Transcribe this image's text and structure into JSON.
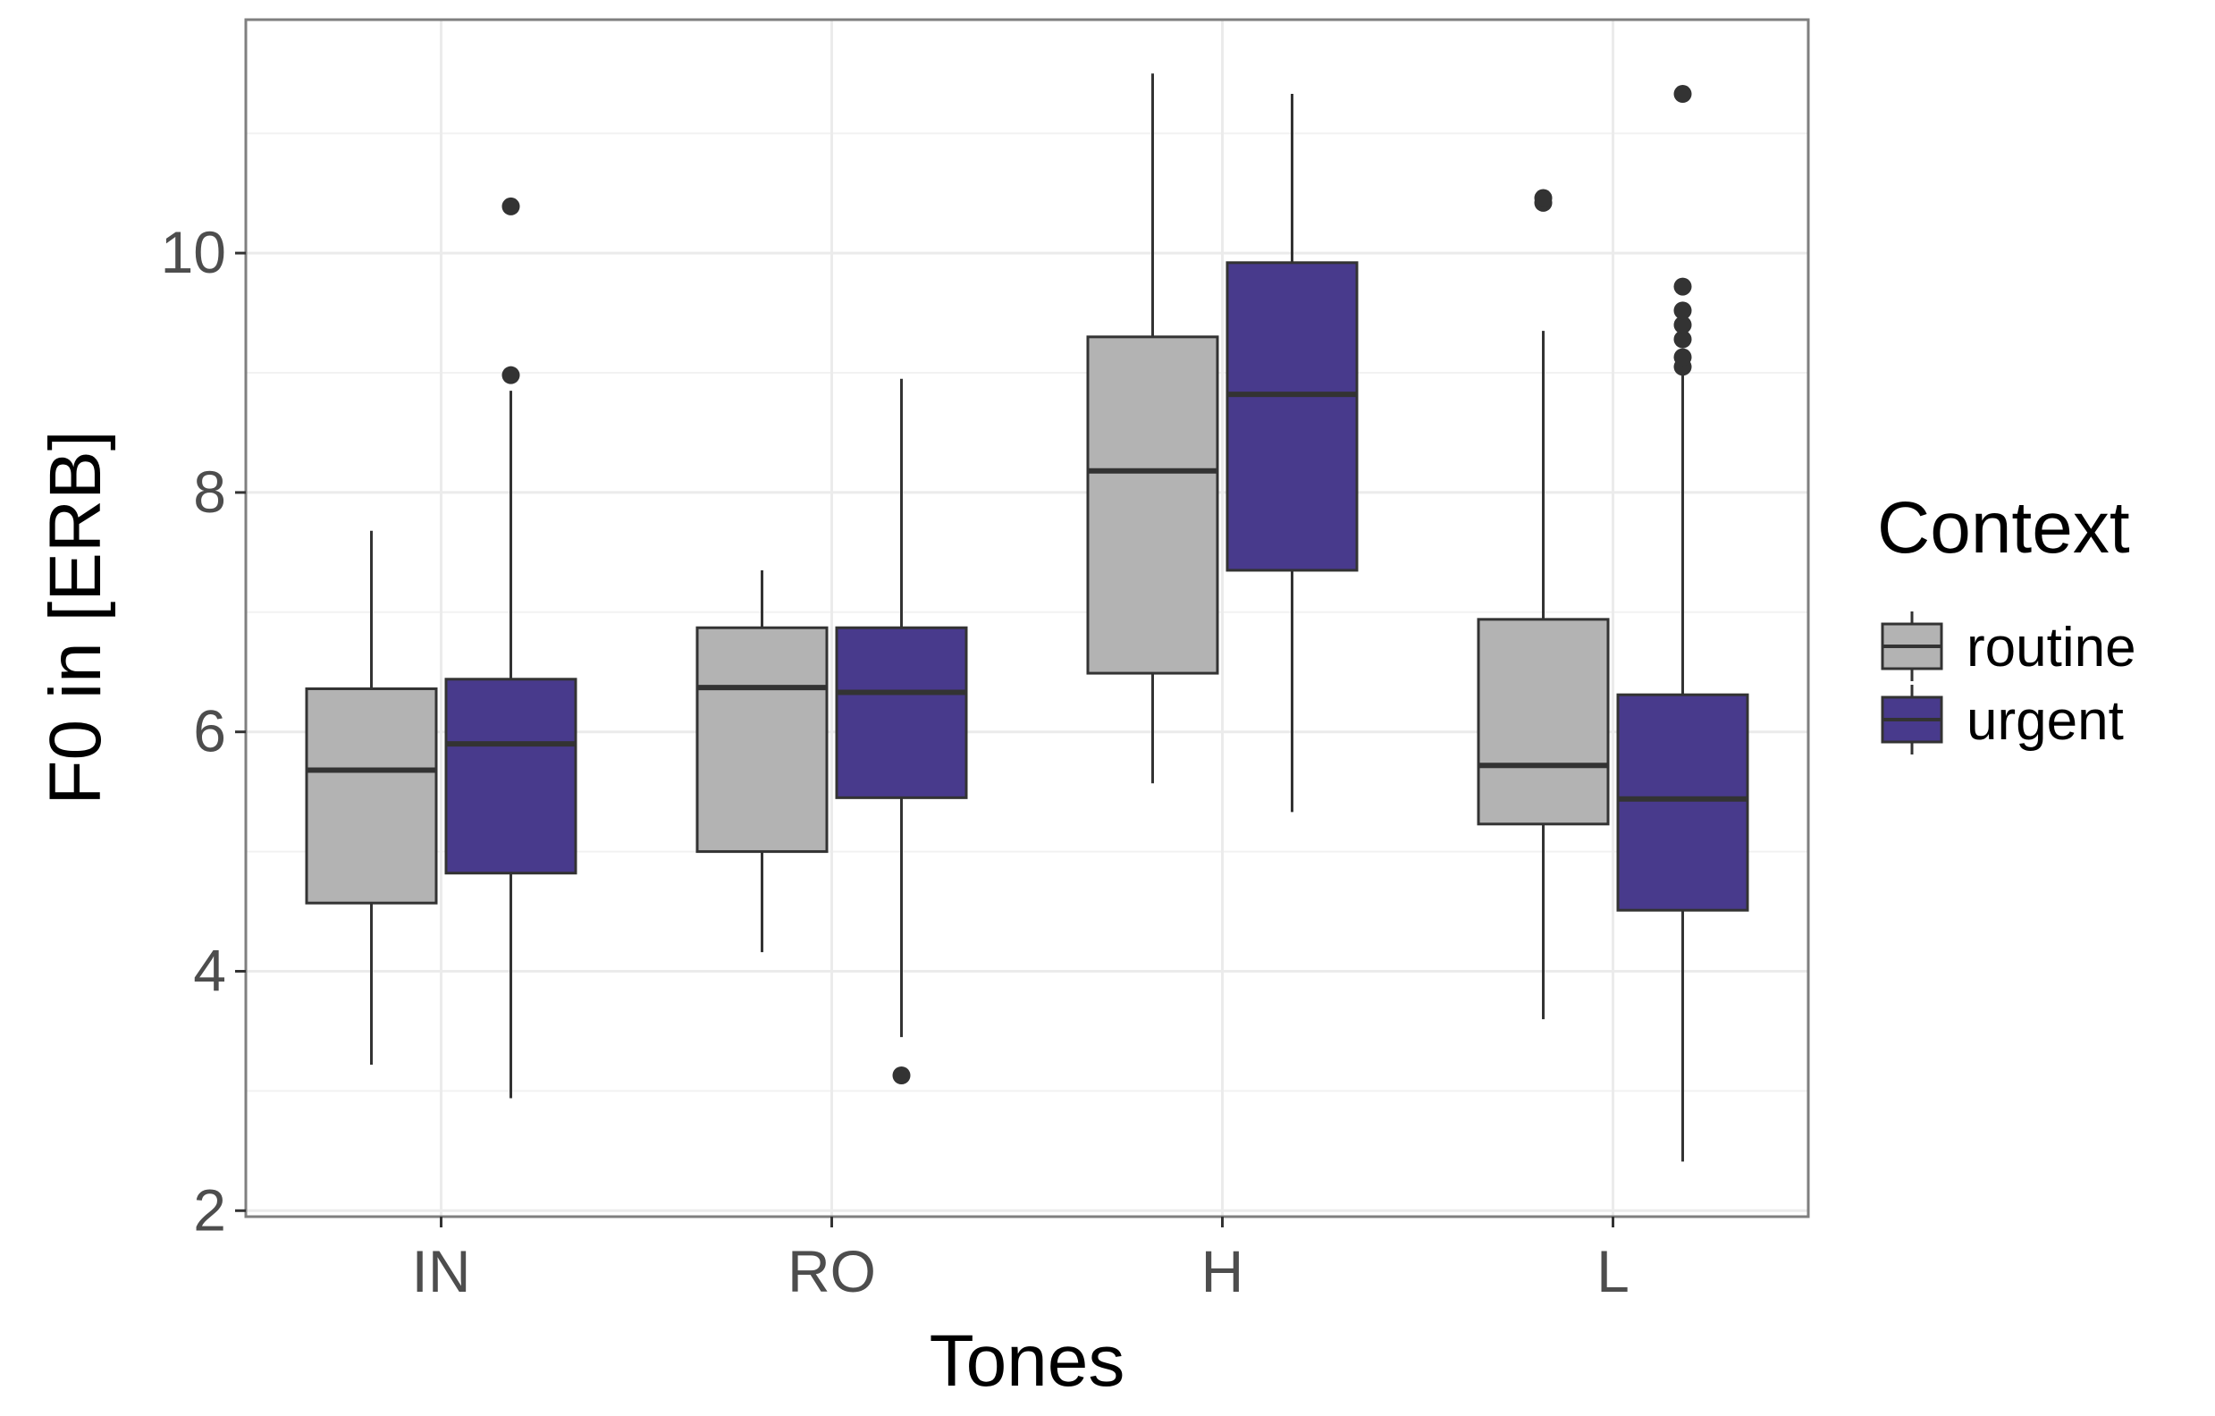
{
  "chart_data": {
    "type": "boxplot",
    "title": "",
    "xlabel": "Tones",
    "ylabel": "F0 in [ERB]",
    "ylim": [
      1.95,
      11.95
    ],
    "yticks": [
      2,
      4,
      6,
      8,
      10
    ],
    "ytick_labels": [
      "2",
      "4",
      "6",
      "8",
      "10"
    ],
    "grid": true,
    "legend_position": "right",
    "categories": [
      "IN",
      "RO",
      "H",
      "L"
    ],
    "legend": {
      "title": "Context",
      "entries": [
        "routine",
        "urgent"
      ]
    },
    "series": [
      {
        "name": "routine",
        "color": "#b3b3b3",
        "boxes": [
          {
            "category": "IN",
            "whisker_low": 3.22,
            "q1": 4.57,
            "median": 5.68,
            "q3": 6.36,
            "whisker_high": 7.68,
            "outliers": []
          },
          {
            "category": "RO",
            "whisker_low": 4.16,
            "q1": 5.0,
            "median": 6.37,
            "q3": 6.87,
            "whisker_high": 7.35,
            "outliers": []
          },
          {
            "category": "H",
            "whisker_low": 5.57,
            "q1": 6.49,
            "median": 8.18,
            "q3": 9.3,
            "whisker_high": 11.5,
            "outliers": []
          },
          {
            "category": "L",
            "whisker_low": 3.6,
            "q1": 5.23,
            "median": 5.72,
            "q3": 6.94,
            "whisker_high": 9.35,
            "outliers": [
              10.42,
              10.46
            ]
          }
        ]
      },
      {
        "name": "urgent",
        "color": "#483a8c",
        "boxes": [
          {
            "category": "IN",
            "whisker_low": 2.94,
            "q1": 4.82,
            "median": 5.9,
            "q3": 6.44,
            "whisker_high": 8.85,
            "outliers": [
              8.98,
              10.39
            ]
          },
          {
            "category": "RO",
            "whisker_low": 3.45,
            "q1": 5.45,
            "median": 6.33,
            "q3": 6.87,
            "whisker_high": 8.95,
            "outliers": [
              3.13
            ]
          },
          {
            "category": "H",
            "whisker_low": 5.33,
            "q1": 7.35,
            "median": 8.82,
            "q3": 9.92,
            "whisker_high": 11.33,
            "outliers": []
          },
          {
            "category": "L",
            "whisker_low": 2.41,
            "q1": 4.51,
            "median": 5.44,
            "q3": 6.31,
            "whisker_high": 8.98,
            "outliers": [
              9.05,
              9.13,
              9.28,
              9.4,
              9.52,
              9.72,
              11.33
            ]
          }
        ]
      }
    ]
  }
}
